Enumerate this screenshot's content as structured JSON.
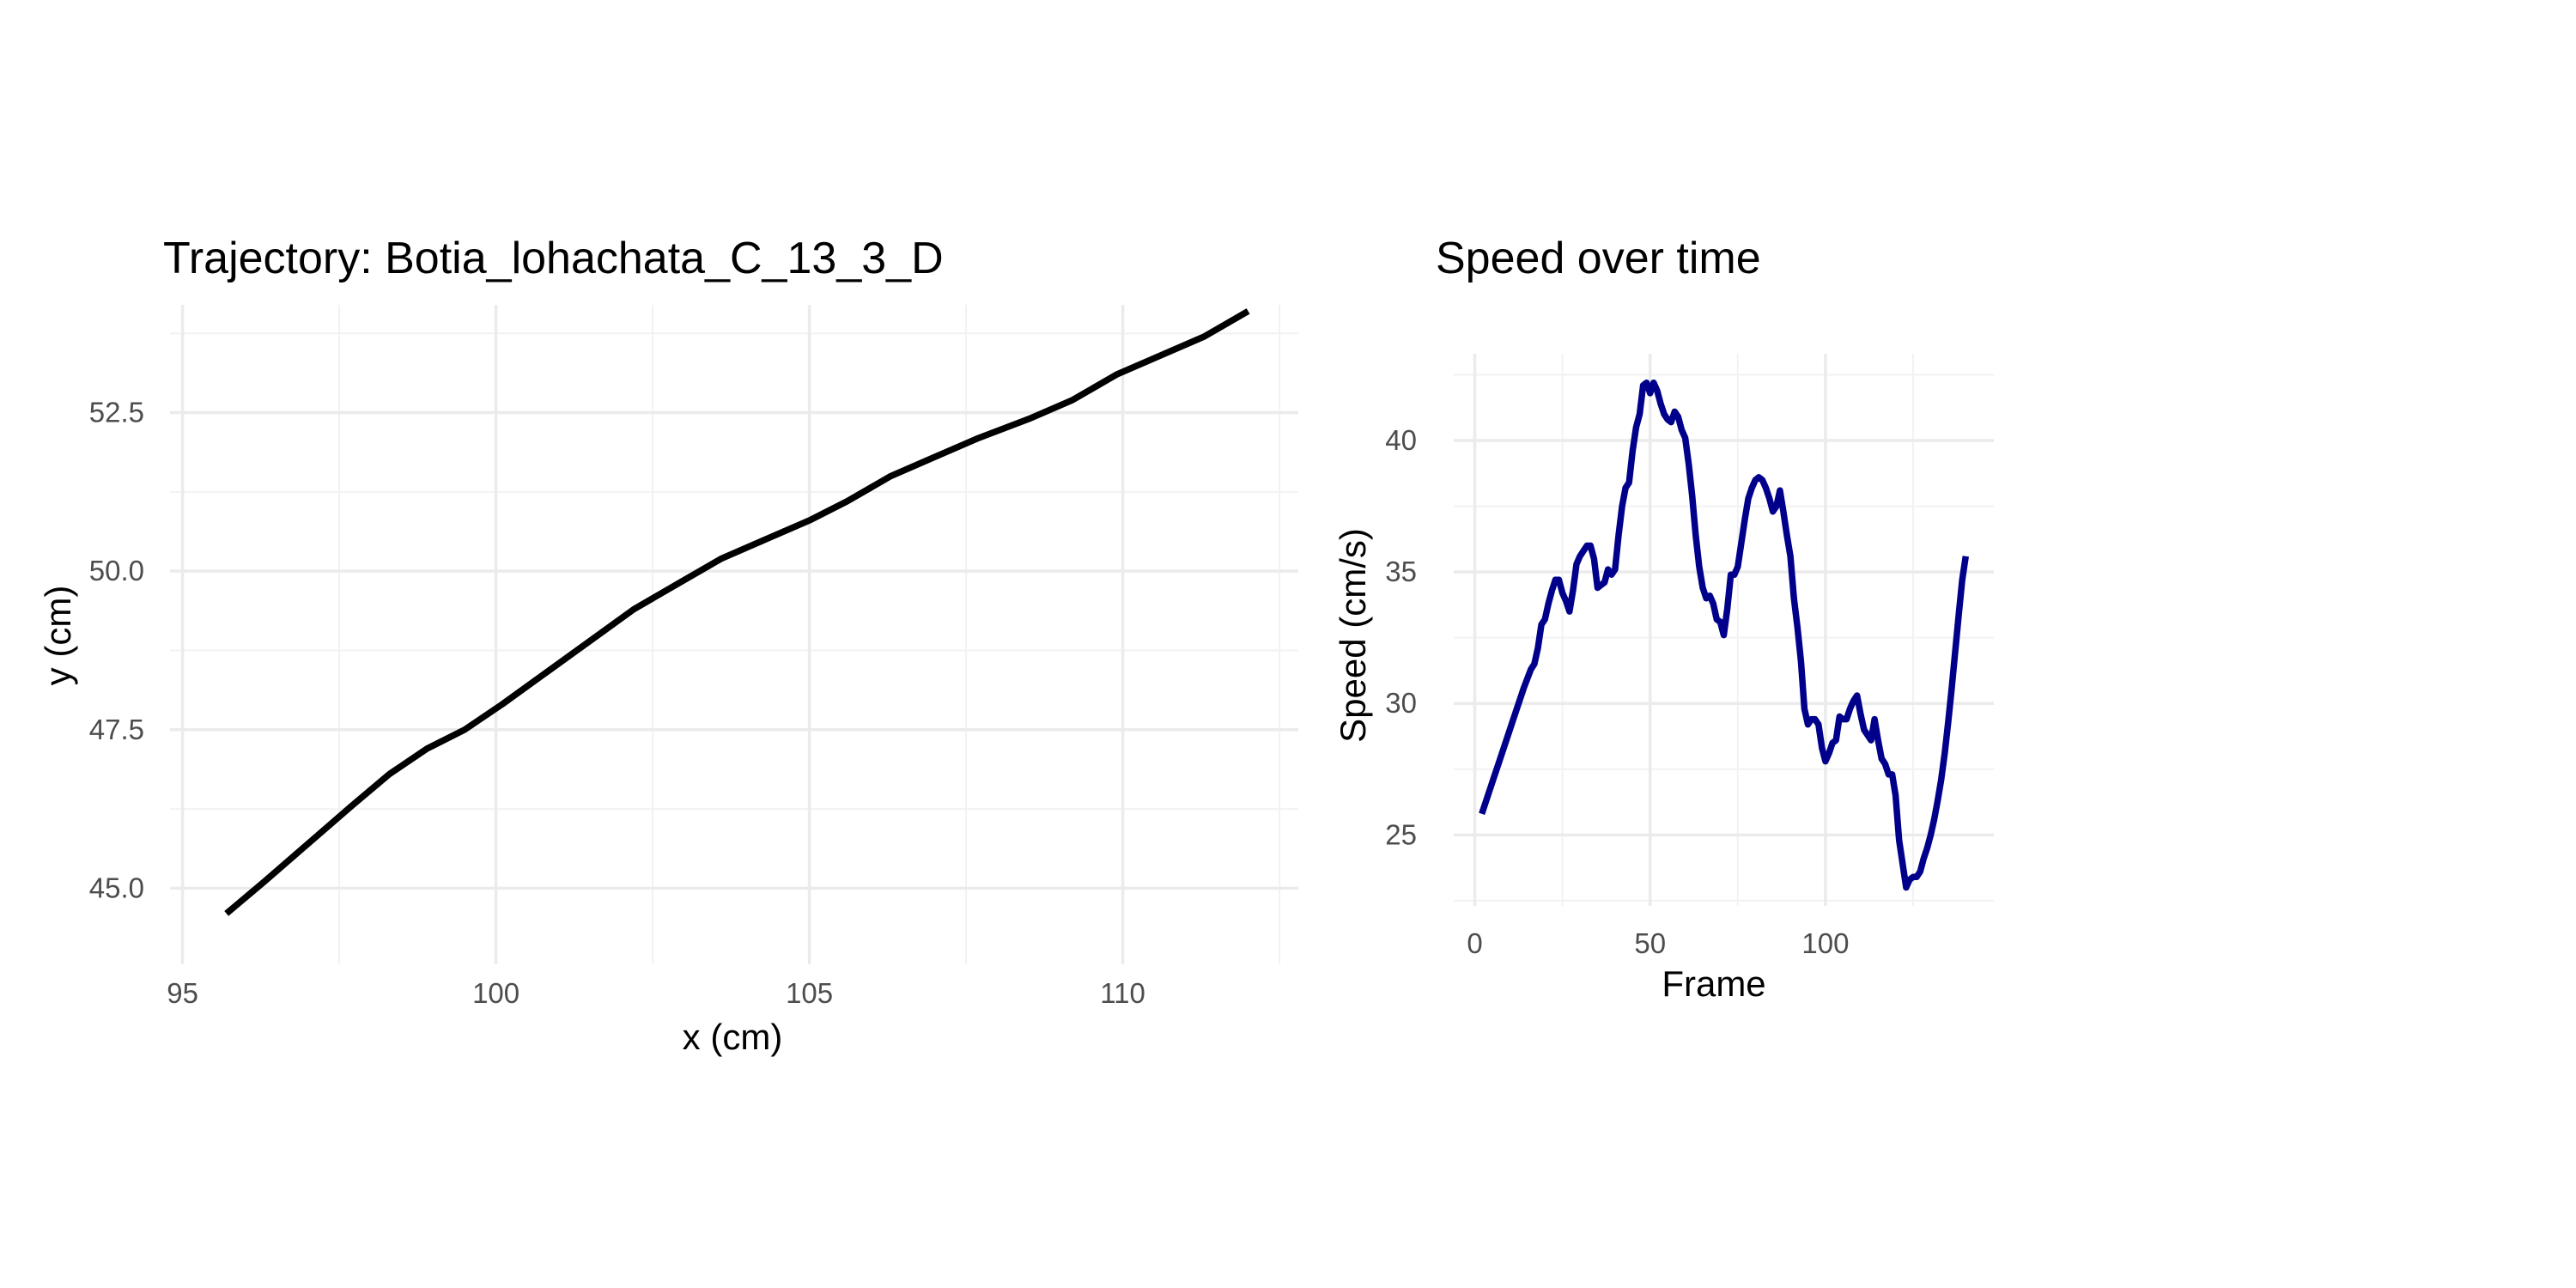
{
  "chart_data": [
    {
      "type": "line",
      "title": "Trajectory: Botia_lohachata_C_13_3_D",
      "xlabel": "x (cm)",
      "ylabel": "y (cm)",
      "xlim": [
        94.8,
        112.8
      ],
      "ylim": [
        43.8,
        54.2
      ],
      "x_ticks": [
        95,
        100,
        105,
        110
      ],
      "x_tick_labels": [
        "95",
        "100",
        "105",
        "110"
      ],
      "y_ticks": [
        45.0,
        47.5,
        50.0,
        52.5
      ],
      "y_tick_labels": [
        "45.0",
        "47.5",
        "50.0",
        "52.5"
      ],
      "grid": true,
      "line_color": "#000000",
      "series": [
        {
          "x": [
            95.7,
            96.3,
            97.0,
            97.7,
            98.3,
            98.9,
            99.5,
            100.1,
            100.8,
            101.5,
            102.2,
            102.9,
            103.6,
            104.3,
            105.0,
            105.6,
            106.3,
            107.0,
            107.7,
            108.5,
            109.2,
            109.9,
            110.6,
            111.3,
            112.0
          ],
          "y": [
            44.6,
            45.1,
            45.7,
            46.3,
            46.8,
            47.2,
            47.5,
            47.9,
            48.4,
            48.9,
            49.4,
            49.8,
            50.2,
            50.5,
            50.8,
            51.1,
            51.5,
            51.8,
            52.1,
            52.4,
            52.7,
            53.1,
            53.4,
            53.7,
            54.1
          ]
        }
      ]
    },
    {
      "type": "line",
      "title": "Speed over time",
      "xlabel": "Frame",
      "ylabel": "Speed (cm/s)",
      "xlim": [
        -6,
        148
      ],
      "ylim": [
        22.3,
        43.3
      ],
      "x_ticks": [
        0,
        50,
        100
      ],
      "x_tick_labels": [
        "0",
        "50",
        "100"
      ],
      "y_ticks": [
        25,
        30,
        35,
        40
      ],
      "y_tick_labels": [
        "25",
        "30",
        "35",
        "40"
      ],
      "grid": true,
      "line_color": "#00008B",
      "series": [
        {
          "x": [
            2,
            5,
            8,
            11,
            14,
            16,
            17,
            18,
            19,
            20,
            21,
            22,
            23,
            24,
            25,
            26,
            27,
            28,
            29,
            30,
            31,
            32,
            33,
            34,
            35,
            36,
            37,
            38,
            39,
            40,
            41,
            42,
            43,
            44,
            45,
            46,
            47,
            48,
            49,
            50,
            51,
            52,
            53,
            54,
            55,
            56,
            57,
            58,
            59,
            60,
            61,
            62,
            63,
            64,
            65,
            66,
            67,
            68,
            69,
            70,
            71,
            72,
            73,
            74,
            75,
            76,
            77,
            78,
            79,
            80,
            81,
            82,
            83,
            84,
            85,
            86,
            87,
            88,
            89,
            90,
            91,
            92,
            93,
            94,
            95,
            96,
            97,
            98,
            99,
            100,
            101,
            102,
            103,
            104,
            105,
            106,
            107,
            108,
            109,
            110,
            111,
            112,
            113,
            114,
            115,
            116,
            117,
            118,
            119,
            120,
            121,
            122,
            123,
            124,
            125,
            126,
            127,
            128,
            129,
            130,
            131,
            132,
            133,
            134,
            135,
            136,
            137,
            138,
            139,
            140
          ],
          "y": [
            25.8,
            27.0,
            28.2,
            29.4,
            30.6,
            31.3,
            31.5,
            32.1,
            33.0,
            33.2,
            33.8,
            34.3,
            34.7,
            34.7,
            34.2,
            33.9,
            33.5,
            34.3,
            35.3,
            35.6,
            35.8,
            36.0,
            36.0,
            35.5,
            34.4,
            34.5,
            34.6,
            35.1,
            34.9,
            35.1,
            36.4,
            37.5,
            38.2,
            38.4,
            39.6,
            40.5,
            41.0,
            42.1,
            42.2,
            41.8,
            42.2,
            41.9,
            41.4,
            41.0,
            40.8,
            40.7,
            41.1,
            40.9,
            40.4,
            40.1,
            39.1,
            37.9,
            36.4,
            35.2,
            34.4,
            34.0,
            34.1,
            33.8,
            33.2,
            33.1,
            32.6,
            33.6,
            34.9,
            34.9,
            35.2,
            36.1,
            37.0,
            37.8,
            38.2,
            38.5,
            38.6,
            38.5,
            38.2,
            37.8,
            37.3,
            37.5,
            38.1,
            37.3,
            36.4,
            35.6,
            34.0,
            32.9,
            31.6,
            29.8,
            29.2,
            29.4,
            29.4,
            29.2,
            28.3,
            27.8,
            28.1,
            28.5,
            28.6,
            29.5,
            29.4,
            29.4,
            29.8,
            30.1,
            30.3,
            29.6,
            29.0,
            28.8,
            28.6,
            29.4,
            28.6,
            27.9,
            27.7,
            27.3,
            27.3,
            26.5,
            24.8,
            23.9,
            23.0,
            23.3,
            23.4,
            23.4,
            23.6,
            24.1,
            24.5,
            25.0,
            25.6,
            26.3,
            27.1,
            28.1,
            29.3,
            30.6,
            32.0,
            33.4,
            34.7,
            35.6
          ]
        }
      ]
    }
  ]
}
